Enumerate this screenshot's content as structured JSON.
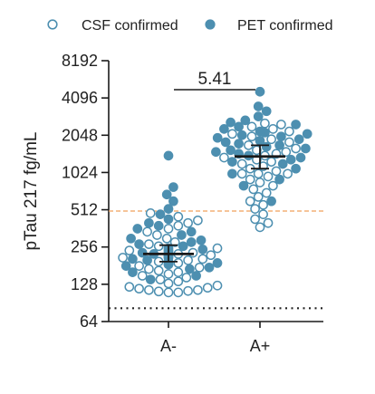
{
  "chart_data": {
    "type": "scatter",
    "subtype": "dot-plot with median and interquartile range",
    "title": "",
    "xlabel": "",
    "ylabel": "pTau 217 fg/mL",
    "y_scale": "log2",
    "ylim": [
      64,
      8192
    ],
    "y_ticks": [
      64,
      128,
      256,
      512,
      1024,
      2048,
      4096,
      8192
    ],
    "y_tick_labels": [
      "64",
      "128",
      "256",
      "512",
      "1024",
      "2048",
      "4096",
      "8192"
    ],
    "categories": [
      "A-",
      "A+"
    ],
    "legend": {
      "placement": "top",
      "entries": [
        {
          "label": "CSF confirmed",
          "marker": "open-circle"
        },
        {
          "label": "PET confirmed",
          "marker": "filled-circle"
        }
      ]
    },
    "marker_color": "#4d8fb0",
    "summary_color": "#1a1a1a",
    "reference_lines": [
      {
        "value": 500,
        "style": "dashed",
        "color": "#f0a05a"
      },
      {
        "value": 82,
        "style": "dotted",
        "color": "#222222"
      }
    ],
    "annotations": [
      {
        "text": "5.41",
        "type": "fold-difference bracket",
        "between": [
          "A-",
          "A+"
        ]
      }
    ],
    "groups": [
      {
        "category": "A-",
        "median": 225,
        "q1": 195,
        "q3": 265,
        "csf_confirmed": [
          110,
          110,
          112,
          113,
          115,
          115,
          118,
          120,
          122,
          125,
          130,
          135,
          140,
          145,
          150,
          155,
          160,
          165,
          170,
          175,
          180,
          185,
          190,
          195,
          200,
          205,
          210,
          215,
          220,
          225,
          230,
          240,
          250,
          260,
          270,
          280,
          300,
          320,
          340,
          360,
          380,
          400,
          420,
          450,
          480
        ],
        "pet_confirmed": [
          140,
          150,
          160,
          170,
          175,
          180,
          185,
          190,
          195,
          200,
          205,
          210,
          215,
          220,
          225,
          230,
          235,
          240,
          245,
          250,
          260,
          270,
          280,
          290,
          300,
          320,
          340,
          360,
          380,
          400,
          430,
          470,
          520,
          600,
          680,
          780,
          1400
        ]
      },
      {
        "category": "A+",
        "median": 1380,
        "q1": 1100,
        "q3": 1700,
        "csf_confirmed": [
          370,
          400,
          430,
          470,
          520,
          560,
          600,
          650,
          700,
          750,
          800,
          850,
          900,
          950,
          1000,
          1000,
          1000,
          1050,
          1100,
          1150,
          1200,
          1250,
          1300,
          1350,
          1400,
          1450,
          1500,
          1550,
          1600,
          1700,
          1800,
          1900,
          2000,
          2100,
          2200,
          2300,
          2400,
          2500,
          2550
        ],
        "pet_confirmed": [
          600,
          800,
          900,
          1000,
          1100,
          1200,
          1250,
          1300,
          1350,
          1400,
          1450,
          1500,
          1550,
          1600,
          1650,
          1700,
          1750,
          1800,
          1850,
          1900,
          1950,
          2000,
          2050,
          2100,
          2150,
          2200,
          2300,
          2400,
          2500,
          2600,
          2700,
          2900,
          3200,
          3500,
          4600
        ]
      }
    ]
  }
}
